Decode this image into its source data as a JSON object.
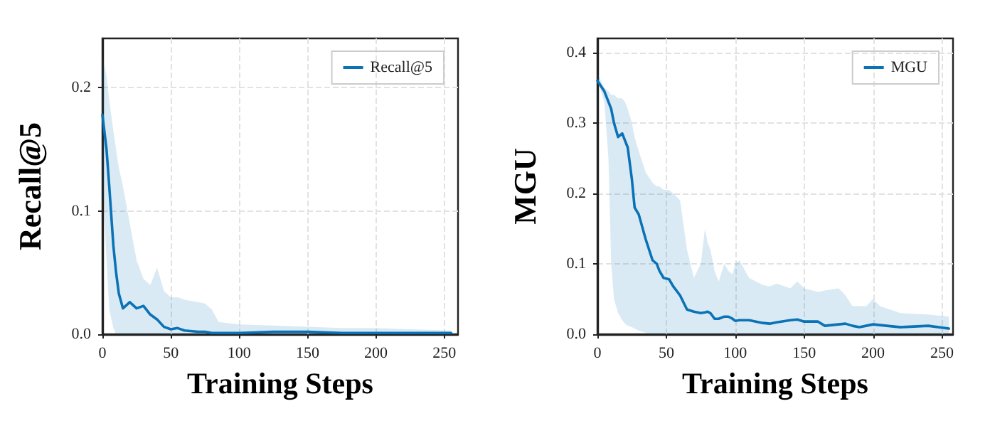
{
  "chart_data": [
    {
      "type": "line",
      "xlabel": "Training Steps",
      "ylabel": "Recall@5",
      "xlim": [
        0,
        260
      ],
      "ylim": [
        0,
        0.24
      ],
      "xticks": [
        0,
        50,
        100,
        150,
        200,
        250
      ],
      "yticks": [
        {
          "value": 0,
          "label": "0.0"
        },
        {
          "value": 0.1,
          "label": "0.1"
        },
        {
          "value": 0.2,
          "label": "0.2"
        }
      ],
      "grid": true,
      "legend": "top right",
      "marker": "none",
      "line_style": "solid",
      "x": [
        0,
        3,
        5,
        8,
        10,
        12,
        15,
        20,
        25,
        30,
        35,
        40,
        45,
        50,
        55,
        60,
        70,
        75,
        80,
        85,
        100,
        125,
        150,
        175,
        200,
        225,
        255
      ],
      "series": [
        {
          "name": "Recall@5",
          "color": "#0a72b5",
          "values": [
            0.178,
            0.15,
            0.12,
            0.072,
            0.05,
            0.033,
            0.021,
            0.026,
            0.021,
            0.023,
            0.016,
            0.012,
            0.006,
            0.004,
            0.005,
            0.003,
            0.002,
            0.002,
            0.001,
            0.001,
            0.001,
            0.002,
            0.002,
            0.001,
            0.001,
            0.001,
            0.001
          ],
          "upper": [
            0.225,
            0.21,
            0.19,
            0.165,
            0.15,
            0.135,
            0.12,
            0.09,
            0.06,
            0.045,
            0.04,
            0.054,
            0.035,
            0.03,
            0.03,
            0.028,
            0.026,
            0.025,
            0.02,
            0.01,
            0.008,
            0.007,
            0.006,
            0.005,
            0.005,
            0.004,
            0.003
          ],
          "lower": [
            0.13,
            0.06,
            0.02,
            0.005,
            0,
            0,
            0,
            0,
            0,
            0,
            0,
            0,
            0,
            0,
            0,
            0,
            0,
            0,
            0,
            0,
            0,
            0,
            0,
            0,
            0,
            0,
            0
          ]
        }
      ]
    },
    {
      "type": "line",
      "xlabel": "Training Steps",
      "ylabel": "MGU",
      "xlim": [
        0,
        258
      ],
      "ylim": [
        0,
        0.42
      ],
      "xticks": [
        0,
        50,
        100,
        150,
        200,
        250
      ],
      "yticks": [
        {
          "value": 0,
          "label": "0.0"
        },
        {
          "value": 0.1,
          "label": "0.1"
        },
        {
          "value": 0.2,
          "label": "0.2"
        },
        {
          "value": 0.3,
          "label": "0.3"
        },
        {
          "value": 0.4,
          "label": "0.4"
        }
      ],
      "grid": true,
      "legend": "top right",
      "marker": "none",
      "line_style": "solid",
      "x": [
        0,
        5,
        8,
        10,
        12,
        15,
        18,
        20,
        22,
        25,
        27,
        30,
        35,
        40,
        43,
        45,
        48,
        52,
        55,
        60,
        65,
        70,
        75,
        78,
        80,
        82,
        85,
        88,
        92,
        95,
        98,
        100,
        103,
        110,
        120,
        125,
        130,
        140,
        145,
        150,
        160,
        165,
        175,
        180,
        185,
        190,
        195,
        200,
        205,
        220,
        240,
        255
      ],
      "series": [
        {
          "name": "MGU",
          "color": "#0a72b5",
          "values": [
            0.36,
            0.345,
            0.33,
            0.32,
            0.3,
            0.28,
            0.285,
            0.275,
            0.265,
            0.22,
            0.18,
            0.17,
            0.135,
            0.105,
            0.1,
            0.09,
            0.08,
            0.078,
            0.068,
            0.055,
            0.035,
            0.032,
            0.03,
            0.031,
            0.032,
            0.03,
            0.022,
            0.022,
            0.025,
            0.025,
            0.022,
            0.019,
            0.02,
            0.02,
            0.016,
            0.015,
            0.017,
            0.02,
            0.021,
            0.018,
            0.018,
            0.012,
            0.014,
            0.015,
            0.012,
            0.01,
            0.012,
            0.014,
            0.013,
            0.01,
            0.012,
            0.008
          ],
          "upper": [
            0.37,
            0.35,
            0.345,
            0.34,
            0.34,
            0.335,
            0.335,
            0.33,
            0.32,
            0.3,
            0.28,
            0.26,
            0.23,
            0.215,
            0.21,
            0.21,
            0.205,
            0.205,
            0.2,
            0.19,
            0.12,
            0.08,
            0.1,
            0.15,
            0.13,
            0.12,
            0.09,
            0.075,
            0.1,
            0.09,
            0.085,
            0.1,
            0.105,
            0.08,
            0.07,
            0.068,
            0.072,
            0.065,
            0.075,
            0.065,
            0.06,
            0.062,
            0.065,
            0.055,
            0.04,
            0.04,
            0.04,
            0.05,
            0.04,
            0.03,
            0.028,
            0.025
          ],
          "lower": [
            0.36,
            0.33,
            0.25,
            0.1,
            0.05,
            0.03,
            0.02,
            0.015,
            0.012,
            0.01,
            0.008,
            0.005,
            0.002,
            0,
            0,
            0,
            0,
            0,
            0,
            0,
            0,
            0,
            0,
            0,
            0,
            0,
            0,
            0,
            0,
            0,
            0,
            0,
            0,
            0,
            0,
            0,
            0,
            0,
            0,
            0,
            0,
            0,
            0,
            0,
            0,
            0,
            0,
            0,
            0,
            0,
            0,
            0
          ]
        }
      ]
    }
  ]
}
